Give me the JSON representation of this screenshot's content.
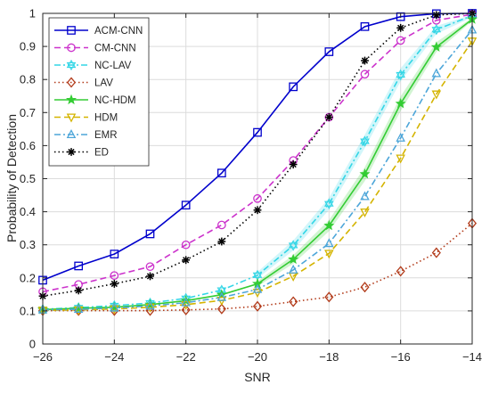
{
  "chart_data": {
    "type": "line",
    "title": "",
    "xlabel": "SNR",
    "ylabel": "Probability of Detection",
    "xlim": [
      -26,
      -14
    ],
    "ylim": [
      0,
      1
    ],
    "x_ticks": [
      -26,
      -24,
      -22,
      -20,
      -18,
      -16,
      -14
    ],
    "y_ticks": [
      0,
      0.1,
      0.2,
      0.3,
      0.4,
      0.5,
      0.6,
      0.7,
      0.8,
      0.9,
      1
    ],
    "grid": true,
    "legend_position": "top-left",
    "x": [
      -26,
      -25,
      -24,
      -23,
      -22,
      -21,
      -20,
      -19,
      -18,
      -17,
      -16,
      -15,
      -14
    ],
    "series": [
      {
        "name": "ACM-CNN",
        "color": "#0000cc",
        "line": "solid",
        "marker": "square",
        "values": [
          0.193,
          0.236,
          0.272,
          0.333,
          0.42,
          0.517,
          0.64,
          0.778,
          0.884,
          0.96,
          0.99,
          0.999,
          1.0
        ]
      },
      {
        "name": "CM-CNN",
        "color": "#cc33cc",
        "line": "dashed",
        "marker": "circle",
        "values": [
          0.158,
          0.18,
          0.207,
          0.234,
          0.3,
          0.36,
          0.44,
          0.555,
          0.686,
          0.816,
          0.918,
          0.979,
          0.997
        ]
      },
      {
        "name": "NC-LAV",
        "color": "#33d6e6",
        "line": "dashdot",
        "marker": "hexagram",
        "values": [
          0.105,
          0.11,
          0.116,
          0.124,
          0.138,
          0.163,
          0.208,
          0.298,
          0.424,
          0.613,
          0.814,
          0.951,
          0.993
        ]
      },
      {
        "name": "LAV",
        "color": "#b23b1a",
        "line": "dotted",
        "marker": "diamond",
        "values": [
          0.101,
          0.101,
          0.101,
          0.101,
          0.103,
          0.106,
          0.114,
          0.128,
          0.142,
          0.172,
          0.22,
          0.276,
          0.365
        ]
      },
      {
        "name": "NC-HDM",
        "color": "#33cc33",
        "line": "solid",
        "marker": "star",
        "values": [
          0.104,
          0.108,
          0.111,
          0.119,
          0.131,
          0.149,
          0.182,
          0.256,
          0.358,
          0.514,
          0.727,
          0.898,
          0.982
        ]
      },
      {
        "name": "HDM",
        "color": "#d4b400",
        "line": "dashed",
        "marker": "triangle-down",
        "values": [
          0.102,
          0.103,
          0.106,
          0.111,
          0.119,
          0.132,
          0.156,
          0.205,
          0.274,
          0.399,
          0.562,
          0.756,
          0.916
        ]
      },
      {
        "name": "EMR",
        "color": "#4da6d9",
        "line": "dashdot",
        "marker": "triangle-up",
        "values": [
          0.103,
          0.105,
          0.109,
          0.115,
          0.125,
          0.141,
          0.165,
          0.224,
          0.304,
          0.446,
          0.623,
          0.818,
          0.95
        ]
      },
      {
        "name": "ED",
        "color": "#000000",
        "line": "dotted",
        "marker": "asterisk",
        "values": [
          0.145,
          0.162,
          0.182,
          0.205,
          0.254,
          0.31,
          0.405,
          0.543,
          0.686,
          0.857,
          0.956,
          0.995,
          1.0
        ]
      }
    ],
    "shading": [
      {
        "series": "NC-LAV",
        "color": "#33d6e6",
        "start_x": -20,
        "lower": [
          0.198,
          0.283,
          0.406,
          0.593,
          0.794,
          0.938,
          0.988
        ],
        "upper": [
          0.218,
          0.313,
          0.442,
          0.633,
          0.834,
          0.962,
          0.996
        ]
      },
      {
        "series": "NC-HDM",
        "color": "#33cc33",
        "start_x": -20,
        "lower": [
          0.174,
          0.243,
          0.341,
          0.493,
          0.705,
          0.883,
          0.977
        ],
        "upper": [
          0.19,
          0.269,
          0.375,
          0.535,
          0.749,
          0.913,
          0.987
        ]
      }
    ]
  }
}
